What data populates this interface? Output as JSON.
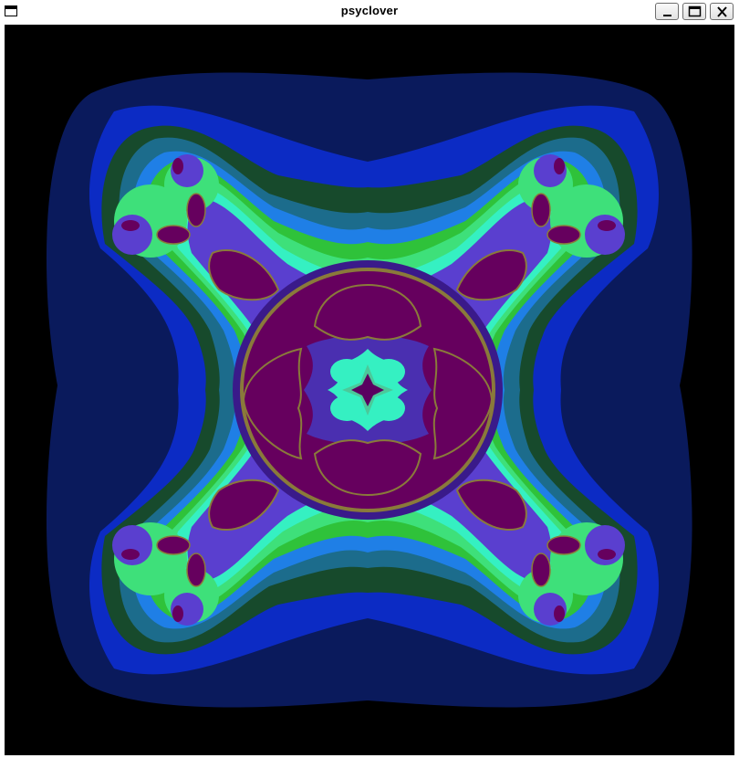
{
  "window": {
    "title": "psyclover",
    "buttons": {
      "minimize": "minimize-icon",
      "maximize": "maximize-icon",
      "close": "close-icon"
    }
  },
  "fractal": {
    "background": "#000000",
    "palette": {
      "outer_navy": "#0a1a5c",
      "blue": "#0c2bc4",
      "dark_green": "#174a2c",
      "teal": "#1c6c8c",
      "sky_blue": "#1f7fe6",
      "green": "#2fc23a",
      "light_green": "#3ee07a",
      "aqua": "#35f0c2",
      "purple_edge": "#5a3fcf",
      "magenta_core": "#66005e"
    }
  }
}
